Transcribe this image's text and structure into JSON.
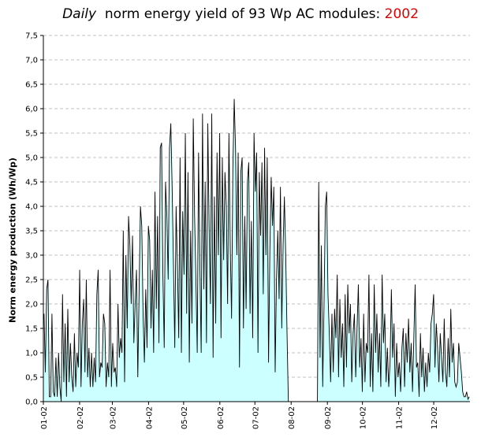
{
  "chart_data": {
    "type": "area",
    "title_prefix": "Daily",
    "title_main": "norm energy yield of 93 Wp AC modules:",
    "title_year": "2002",
    "xlabel": "",
    "ylabel": "Norm energy production (Wh/Wp)",
    "ylim": [
      0,
      7.5
    ],
    "y_ticks": [
      "0,0",
      "0,5",
      "1,0",
      "1,5",
      "2,0",
      "2,5",
      "3,0",
      "3,5",
      "4,0",
      "4,5",
      "5,0",
      "5,5",
      "6,0",
      "6,5",
      "7,0",
      "7,5"
    ],
    "x_ticks": [
      "01-02",
      "02-02",
      "03-02",
      "04-02",
      "05-02",
      "06-02",
      "07-02",
      "08-02",
      "09-02",
      "10-02",
      "11-02",
      "12-02"
    ],
    "grid": true,
    "colors": {
      "fill": "#ccffff",
      "line": "#000000",
      "grid": "#c0c0c0",
      "title_year": "#e00000"
    },
    "series": [
      {
        "values": [
          1.8,
          0.6,
          2.3,
          2.5,
          0.1,
          0.1,
          1.8,
          0.2,
          0.1,
          0.9,
          0.1,
          1.0,
          0.3,
          0.0,
          2.2,
          0.4,
          1.6,
          0.1,
          1.9,
          0.4,
          1.2,
          0.5,
          0.2,
          1.4,
          0.3,
          1.0,
          0.7,
          2.7,
          0.3,
          1.6,
          2.1,
          0.6,
          2.5,
          0.5,
          1.1,
          0.3,
          1.0,
          0.3,
          0.9,
          0.4,
          2.2,
          2.7,
          0.5,
          0.8,
          0.7,
          1.8,
          1.6,
          0.3,
          0.8,
          0.5,
          2.7,
          0.3,
          1.2,
          0.6,
          0.7,
          0.3,
          2.0,
          0.9,
          1.3,
          1.0,
          3.5,
          0.4,
          3.0,
          1.5,
          3.8,
          3.2,
          2.0,
          3.4,
          1.2,
          2.0,
          2.7,
          0.5,
          2.3,
          4.0,
          3.6,
          1.8,
          0.8,
          2.3,
          1.1,
          3.6,
          3.3,
          1.5,
          2.7,
          1.0,
          4.3,
          1.9,
          3.8,
          1.2,
          5.2,
          5.3,
          2.6,
          1.1,
          4.5,
          3.8,
          2.5,
          5.2,
          5.7,
          4.4,
          2.8,
          1.1,
          4.0,
          2.8,
          1.3,
          5.0,
          1.0,
          3.9,
          2.6,
          5.5,
          1.8,
          4.7,
          0.8,
          3.5,
          1.6,
          5.8,
          3.8,
          2.5,
          1.0,
          5.1,
          2.8,
          1.0,
          5.9,
          2.3,
          4.5,
          1.2,
          5.7,
          3.6,
          2.0,
          5.9,
          0.9,
          4.2,
          1.6,
          5.1,
          3.0,
          5.5,
          1.3,
          5.0,
          2.9,
          4.7,
          4.0,
          2.0,
          5.5,
          3.2,
          1.7,
          4.8,
          6.2,
          5.2,
          3.0,
          5.1,
          0.7,
          4.7,
          5.0,
          1.5,
          3.8,
          1.9,
          4.5,
          4.9,
          1.8,
          3.7,
          1.3,
          5.5,
          4.3,
          5.1,
          1.0,
          4.7,
          3.4,
          4.9,
          2.2,
          5.2,
          3.0,
          5.0,
          0.8,
          3.1,
          4.6,
          3.6,
          4.4,
          0.6,
          2.5,
          3.5,
          2.1,
          4.4,
          1.5,
          3.2,
          4.2,
          3.0,
          1.4,
          0.0,
          0.0,
          0.0,
          0.0,
          0.0,
          0.0,
          0.0,
          0.0,
          0.0,
          0.0,
          0.0,
          0.0,
          0.0,
          0.0,
          0.0,
          0.0,
          0.0,
          0.0,
          0.0,
          0.0,
          0.0,
          0.0,
          0.0,
          4.5,
          0.9,
          3.2,
          0.3,
          2.0,
          4.0,
          4.3,
          2.2,
          1.4,
          0.4,
          1.8,
          0.6,
          1.9,
          1.3,
          2.6,
          0.5,
          2.1,
          0.9,
          1.6,
          0.3,
          2.2,
          0.7,
          2.4,
          1.4,
          2.0,
          0.4,
          1.4,
          1.8,
          0.5,
          1.5,
          2.4,
          0.7,
          1.3,
          0.2,
          1.8,
          0.4,
          1.2,
          1.0,
          2.6,
          0.3,
          1.4,
          0.2,
          2.4,
          1.0,
          1.8,
          0.6,
          1.4,
          0.3,
          2.6,
          1.2,
          1.8,
          0.4,
          1.1,
          0.3,
          0.8,
          2.3,
          0.9,
          1.6,
          0.1,
          1.2,
          0.5,
          0.8,
          0.2,
          1.1,
          1.5,
          0.3,
          1.4,
          0.8,
          1.7,
          0.6,
          1.2,
          0.2,
          1.3,
          2.4,
          0.7,
          0.8,
          0.1,
          1.4,
          0.5,
          1.1,
          0.2,
          0.8,
          0.3,
          1.0,
          0.6,
          1.6,
          1.8,
          2.2,
          0.7,
          1.6,
          1.1,
          0.4,
          1.4,
          0.9,
          0.4,
          1.7,
          0.6,
          0.3,
          1.3,
          0.5,
          1.9,
          0.8,
          1.2,
          0.4,
          0.3,
          0.4,
          1.2,
          0.9,
          0.6,
          0.2,
          0.1,
          0.1,
          0.2,
          0.05,
          0.1
        ]
      }
    ]
  }
}
